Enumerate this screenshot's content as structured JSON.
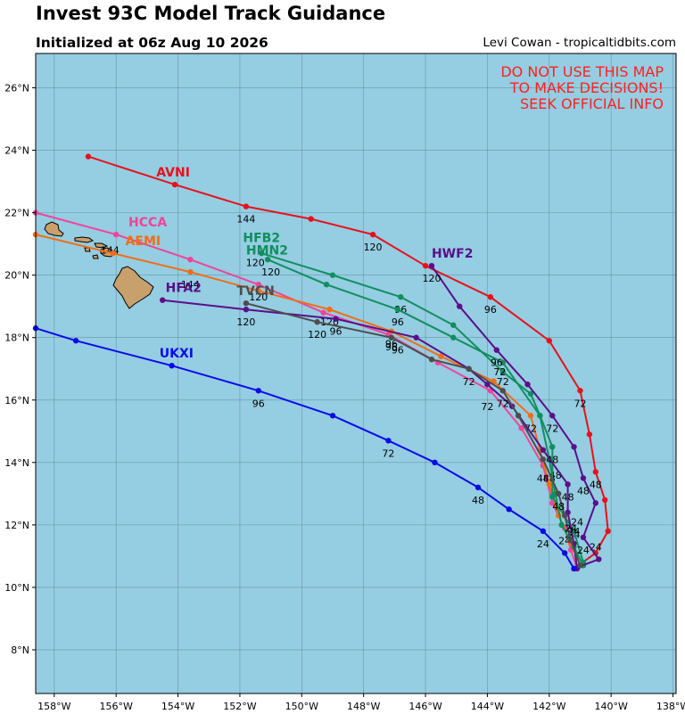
{
  "title": "Invest 93C Model Track Guidance",
  "subtitle": "Initialized at 06z Aug 10 2026",
  "credit": "Levi Cowan - tropicaltidbits.com",
  "warning_lines": [
    "DO NOT USE THIS MAP",
    "TO MAKE DECISIONS!",
    "SEEK OFFICIAL INFO"
  ],
  "colors": {
    "ocean": "#95cde2",
    "land": "#c8a06c",
    "warning": "#ff2020"
  },
  "axes": {
    "lon_ticks": [
      {
        "v": -158,
        "label": "158°W"
      },
      {
        "v": -156,
        "label": "156°W"
      },
      {
        "v": -154,
        "label": "154°W"
      },
      {
        "v": -152,
        "label": "152°W"
      },
      {
        "v": -150,
        "label": "150°W"
      },
      {
        "v": -148,
        "label": "148°W"
      },
      {
        "v": -146,
        "label": "146°W"
      },
      {
        "v": -144,
        "label": "144°W"
      },
      {
        "v": -142,
        "label": "142°W"
      },
      {
        "v": -140,
        "label": "140°W"
      },
      {
        "v": -138,
        "label": "138°W"
      }
    ],
    "lat_ticks": [
      {
        "v": 8,
        "label": "8°N"
      },
      {
        "v": 10,
        "label": "10°N"
      },
      {
        "v": 12,
        "label": "12°N"
      },
      {
        "v": 14,
        "label": "14°N"
      },
      {
        "v": 16,
        "label": "16°N"
      },
      {
        "v": 18,
        "label": "18°N"
      },
      {
        "v": 20,
        "label": "20°N"
      },
      {
        "v": 22,
        "label": "22°N"
      },
      {
        "v": 24,
        "label": "24°N"
      },
      {
        "v": 26,
        "label": "26°N"
      }
    ],
    "lon_range": [
      -158.6,
      -137.9
    ],
    "lat_range": [
      6.6,
      27.1
    ],
    "grid": true
  },
  "chart_data": {
    "type": "line",
    "title": "Invest 93C Model Track Guidance",
    "xlabel": "",
    "ylabel": "",
    "xlim": [
      -158.6,
      -137.9
    ],
    "ylim": [
      6.6,
      27.1
    ],
    "series": [
      {
        "name": "AVNI",
        "color": "#e8111a",
        "points": [
          [
            -141.2,
            10.6
          ],
          [
            -140.5,
            11.1
          ],
          [
            -140.1,
            11.8
          ],
          [
            -140.2,
            12.8
          ],
          [
            -140.5,
            13.7
          ],
          [
            -140.7,
            14.9
          ],
          [
            -141.0,
            16.3
          ],
          [
            -142.0,
            17.9
          ],
          [
            -143.9,
            19.3
          ],
          [
            -146.0,
            20.3
          ],
          [
            -147.7,
            21.3
          ],
          [
            -149.7,
            21.8
          ],
          [
            -151.8,
            22.2
          ],
          [
            -154.1,
            22.9
          ],
          [
            -156.9,
            23.8
          ]
        ],
        "hour_labels": [
          {
            "h": "24",
            "at": [
              -140.5,
              11.3
            ]
          },
          {
            "h": "48",
            "at": [
              -140.5,
              13.3
            ]
          },
          {
            "h": "72",
            "at": [
              -141.0,
              15.9
            ]
          },
          {
            "h": "96",
            "at": [
              -143.9,
              18.9
            ]
          },
          {
            "h": "120",
            "at": [
              -147.7,
              20.9
            ]
          },
          {
            "h": "144",
            "at": [
              -151.8,
              21.8
            ]
          }
        ],
        "name_at": [
          -154.7,
          23.3
        ]
      },
      {
        "name": "HCCA",
        "color": "#f0449a",
        "points": [
          [
            -141.1,
            10.6
          ],
          [
            -141.3,
            11.2
          ],
          [
            -141.5,
            11.9
          ],
          [
            -141.9,
            12.7
          ],
          [
            -142.2,
            13.9
          ],
          [
            -142.9,
            15.1
          ],
          [
            -143.9,
            16.3
          ],
          [
            -145.6,
            17.2
          ],
          [
            -147.2,
            18.1
          ],
          [
            -149.3,
            18.8
          ],
          [
            -151.4,
            19.7
          ],
          [
            -153.6,
            20.5
          ],
          [
            -156.0,
            21.3
          ],
          [
            -158.6,
            22.0
          ]
        ],
        "hour_labels": [
          {
            "h": "24",
            "at": [
              -141.5,
              11.5
            ]
          },
          {
            "h": "48",
            "at": [
              -142.2,
              13.5
            ]
          },
          {
            "h": "72",
            "at": [
              -144.0,
              15.8
            ]
          },
          {
            "h": "96",
            "at": [
              -147.1,
              17.7
            ]
          },
          {
            "h": "120",
            "at": [
              -151.4,
              19.3
            ]
          },
          {
            "h": "144",
            "at": [
              -156.2,
              20.8
            ]
          }
        ],
        "name_at": [
          -155.6,
          21.7
        ]
      },
      {
        "name": "AEMI",
        "color": "#f26d12",
        "points": [
          [
            -141.0,
            10.7
          ],
          [
            -141.3,
            11.4
          ],
          [
            -141.7,
            12.3
          ],
          [
            -142.0,
            13.3
          ],
          [
            -142.3,
            14.4
          ],
          [
            -142.6,
            15.5
          ],
          [
            -143.8,
            16.6
          ],
          [
            -145.5,
            17.4
          ],
          [
            -147.1,
            18.2
          ],
          [
            -149.1,
            18.9
          ],
          [
            -151.4,
            19.5
          ],
          [
            -153.6,
            20.1
          ],
          [
            -156.1,
            20.7
          ],
          [
            -158.6,
            21.3
          ]
        ],
        "hour_labels": [
          {
            "h": "24",
            "at": [
              -141.3,
              11.7
            ]
          },
          {
            "h": "48",
            "at": [
              -142.0,
              13.5
            ]
          },
          {
            "h": "72",
            "at": [
              -142.6,
              15.1
            ]
          },
          {
            "h": "96",
            "at": [
              -147.1,
              17.8
            ]
          },
          {
            "h": "120",
            "at": [
              -149.1,
              18.5
            ]
          },
          {
            "h": "144",
            "at": [
              -153.6,
              19.7
            ]
          }
        ],
        "name_at": [
          -155.7,
          21.1
        ]
      },
      {
        "name": "HFB2",
        "color": "#118f5e",
        "points": [
          [
            -140.9,
            10.7
          ],
          [
            -141.2,
            11.3
          ],
          [
            -141.6,
            12.0
          ],
          [
            -141.8,
            13.0
          ],
          [
            -142.0,
            14.1
          ],
          [
            -142.3,
            15.5
          ],
          [
            -142.6,
            16.2
          ],
          [
            -143.5,
            16.9
          ],
          [
            -145.1,
            18.4
          ],
          [
            -146.8,
            19.3
          ],
          [
            -149.0,
            20.0
          ],
          [
            -151.3,
            20.7
          ]
        ],
        "hour_labels": [
          {
            "h": "24",
            "at": [
              -141.2,
              11.7
            ]
          },
          {
            "h": "48",
            "at": [
              -141.8,
              13.6
            ]
          },
          {
            "h": "72",
            "at": [
              -143.5,
              16.6
            ]
          },
          {
            "h": "96",
            "at": [
              -146.8,
              18.9
            ]
          },
          {
            "h": "120",
            "at": [
              -151.5,
              20.4
            ]
          }
        ],
        "name_at": [
          -151.9,
          21.2
        ]
      },
      {
        "name": "HMN2",
        "color": "#118f5e",
        "points": [
          [
            -140.9,
            10.8
          ],
          [
            -141.2,
            11.8
          ],
          [
            -141.9,
            12.9
          ],
          [
            -141.9,
            14.5
          ],
          [
            -142.3,
            15.5
          ],
          [
            -143.5,
            17.2
          ],
          [
            -145.1,
            18.0
          ],
          [
            -146.9,
            18.9
          ],
          [
            -149.2,
            19.7
          ],
          [
            -151.1,
            20.5
          ]
        ],
        "hour_labels": [
          {
            "h": "24",
            "at": [
              -141.1,
              12.1
            ]
          },
          {
            "h": "48",
            "at": [
              -141.9,
              14.1
            ]
          },
          {
            "h": "72",
            "at": [
              -143.6,
              16.9
            ]
          },
          {
            "h": "96",
            "at": [
              -146.9,
              18.5
            ]
          },
          {
            "h": "120",
            "at": [
              -151.0,
              20.1
            ]
          }
        ],
        "name_at": [
          -151.8,
          20.8
        ]
      },
      {
        "name": "HWF2",
        "color": "#5a0f8a",
        "points": [
          [
            -141.2,
            10.6
          ],
          [
            -140.4,
            10.9
          ],
          [
            -140.9,
            11.6
          ],
          [
            -140.5,
            12.7
          ],
          [
            -140.9,
            13.5
          ],
          [
            -141.2,
            14.5
          ],
          [
            -141.9,
            15.5
          ],
          [
            -142.7,
            16.5
          ],
          [
            -143.7,
            17.6
          ],
          [
            -144.9,
            19.0
          ],
          [
            -145.8,
            20.3
          ]
        ],
        "hour_labels": [
          {
            "h": "24",
            "at": [
              -140.9,
              11.2
            ]
          },
          {
            "h": "48",
            "at": [
              -140.9,
              13.1
            ]
          },
          {
            "h": "72",
            "at": [
              -141.9,
              15.1
            ]
          },
          {
            "h": "96",
            "at": [
              -143.7,
              17.2
            ]
          },
          {
            "h": "120",
            "at": [
              -145.8,
              19.9
            ]
          }
        ],
        "name_at": [
          -145.8,
          20.7
        ]
      },
      {
        "name": "HFA2",
        "color": "#5a0f8a",
        "points": [
          [
            -141.1,
            10.6
          ],
          [
            -141.2,
            11.4
          ],
          [
            -141.4,
            12.4
          ],
          [
            -141.4,
            13.3
          ],
          [
            -142.2,
            14.4
          ],
          [
            -143.2,
            15.8
          ],
          [
            -144.0,
            16.5
          ],
          [
            -144.6,
            17.0
          ],
          [
            -146.3,
            18.0
          ],
          [
            -148.9,
            18.6
          ],
          [
            -151.8,
            18.9
          ],
          [
            -154.5,
            19.2
          ]
        ],
        "hour_labels": [
          {
            "h": "24",
            "at": [
              -141.2,
              11.8
            ]
          },
          {
            "h": "48",
            "at": [
              -141.4,
              12.9
            ]
          },
          {
            "h": "72",
            "at": [
              -144.6,
              16.6
            ]
          },
          {
            "h": "96",
            "at": [
              -148.9,
              18.2
            ]
          },
          {
            "h": "120",
            "at": [
              -151.8,
              18.5
            ]
          },
          {
            "h": "—",
            "at": [
              -154.5,
              18.8
            ]
          }
        ],
        "name_at": [
          -154.4,
          19.6
        ]
      },
      {
        "name": "TVCN",
        "color": "#4d4d4d",
        "points": [
          [
            -141.0,
            10.7
          ],
          [
            -141.3,
            11.5
          ],
          [
            -141.5,
            12.3
          ],
          [
            -141.7,
            13.0
          ],
          [
            -142.2,
            14.1
          ],
          [
            -143.0,
            15.5
          ],
          [
            -143.5,
            16.3
          ],
          [
            -144.6,
            17.0
          ],
          [
            -145.8,
            17.3
          ],
          [
            -147.1,
            18.0
          ],
          [
            -149.5,
            18.5
          ],
          [
            -151.8,
            19.1
          ]
        ],
        "hour_labels": [
          {
            "h": "24",
            "at": [
              -141.3,
              11.9
            ]
          },
          {
            "h": "48",
            "at": [
              -141.7,
              12.6
            ]
          },
          {
            "h": "72",
            "at": [
              -143.5,
              15.9
            ]
          },
          {
            "h": "96",
            "at": [
              -146.9,
              17.6
            ]
          },
          {
            "h": "120",
            "at": [
              -149.5,
              18.1
            ]
          }
        ],
        "name_at": [
          -152.1,
          19.5
        ]
      },
      {
        "name": "UKXI",
        "color": "#0b0be8",
        "points": [
          [
            -141.2,
            10.6
          ],
          [
            -141.5,
            11.1
          ],
          [
            -142.2,
            11.8
          ],
          [
            -143.3,
            12.5
          ],
          [
            -144.3,
            13.2
          ],
          [
            -145.7,
            14.0
          ],
          [
            -147.2,
            14.7
          ],
          [
            -149.0,
            15.5
          ],
          [
            -151.4,
            16.3
          ],
          [
            -154.2,
            17.1
          ],
          [
            -157.3,
            17.9
          ],
          [
            -158.6,
            18.3
          ]
        ],
        "hour_labels": [
          {
            "h": "24",
            "at": [
              -142.2,
              11.4
            ]
          },
          {
            "h": "48",
            "at": [
              -144.3,
              12.8
            ]
          },
          {
            "h": "72",
            "at": [
              -147.2,
              14.3
            ]
          },
          {
            "h": "96",
            "at": [
              -151.4,
              15.9
            ]
          }
        ],
        "name_at": [
          -154.6,
          17.5
        ]
      }
    ]
  }
}
